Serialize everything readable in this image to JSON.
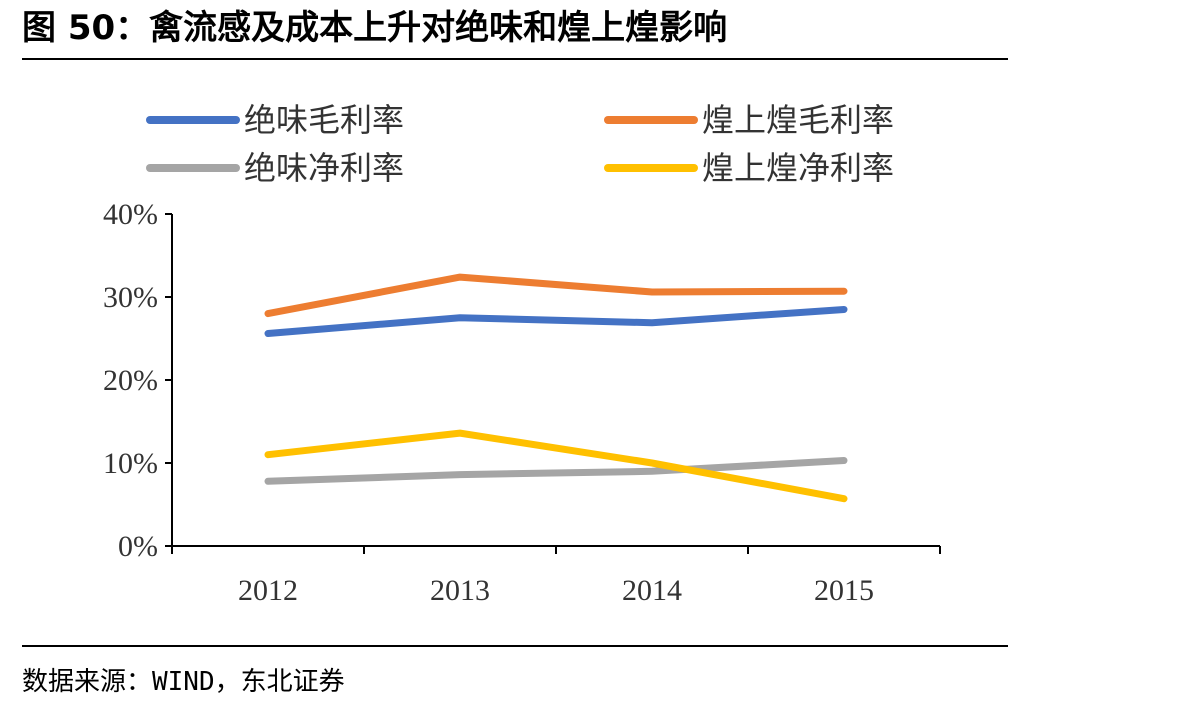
{
  "title": "图 50：禽流感及成本上升对绝味和煌上煌影响",
  "source": "数据来源：WIND，东北证券",
  "chart_data": {
    "type": "line",
    "title": "",
    "xlabel": "",
    "ylabel": "",
    "categories": [
      "2012",
      "2013",
      "2014",
      "2015"
    ],
    "ylim": [
      0,
      40
    ],
    "yticks": [
      0,
      10,
      20,
      30,
      40
    ],
    "ytick_labels": [
      "0%",
      "10%",
      "20%",
      "30%",
      "40%"
    ],
    "grid": false,
    "legend_position": "top",
    "series": [
      {
        "name": "绝味毛利率",
        "color": "#4472C4",
        "values": [
          25.6,
          27.5,
          26.9,
          28.5
        ]
      },
      {
        "name": "煌上煌毛利率",
        "color": "#ED7D31",
        "values": [
          28.0,
          32.4,
          30.6,
          30.7
        ]
      },
      {
        "name": "绝味净利率",
        "color": "#A5A5A5",
        "values": [
          7.8,
          8.6,
          9.0,
          10.3
        ]
      },
      {
        "name": "煌上煌净利率",
        "color": "#FFC000",
        "values": [
          11.0,
          13.6,
          10.0,
          5.7
        ]
      }
    ]
  }
}
